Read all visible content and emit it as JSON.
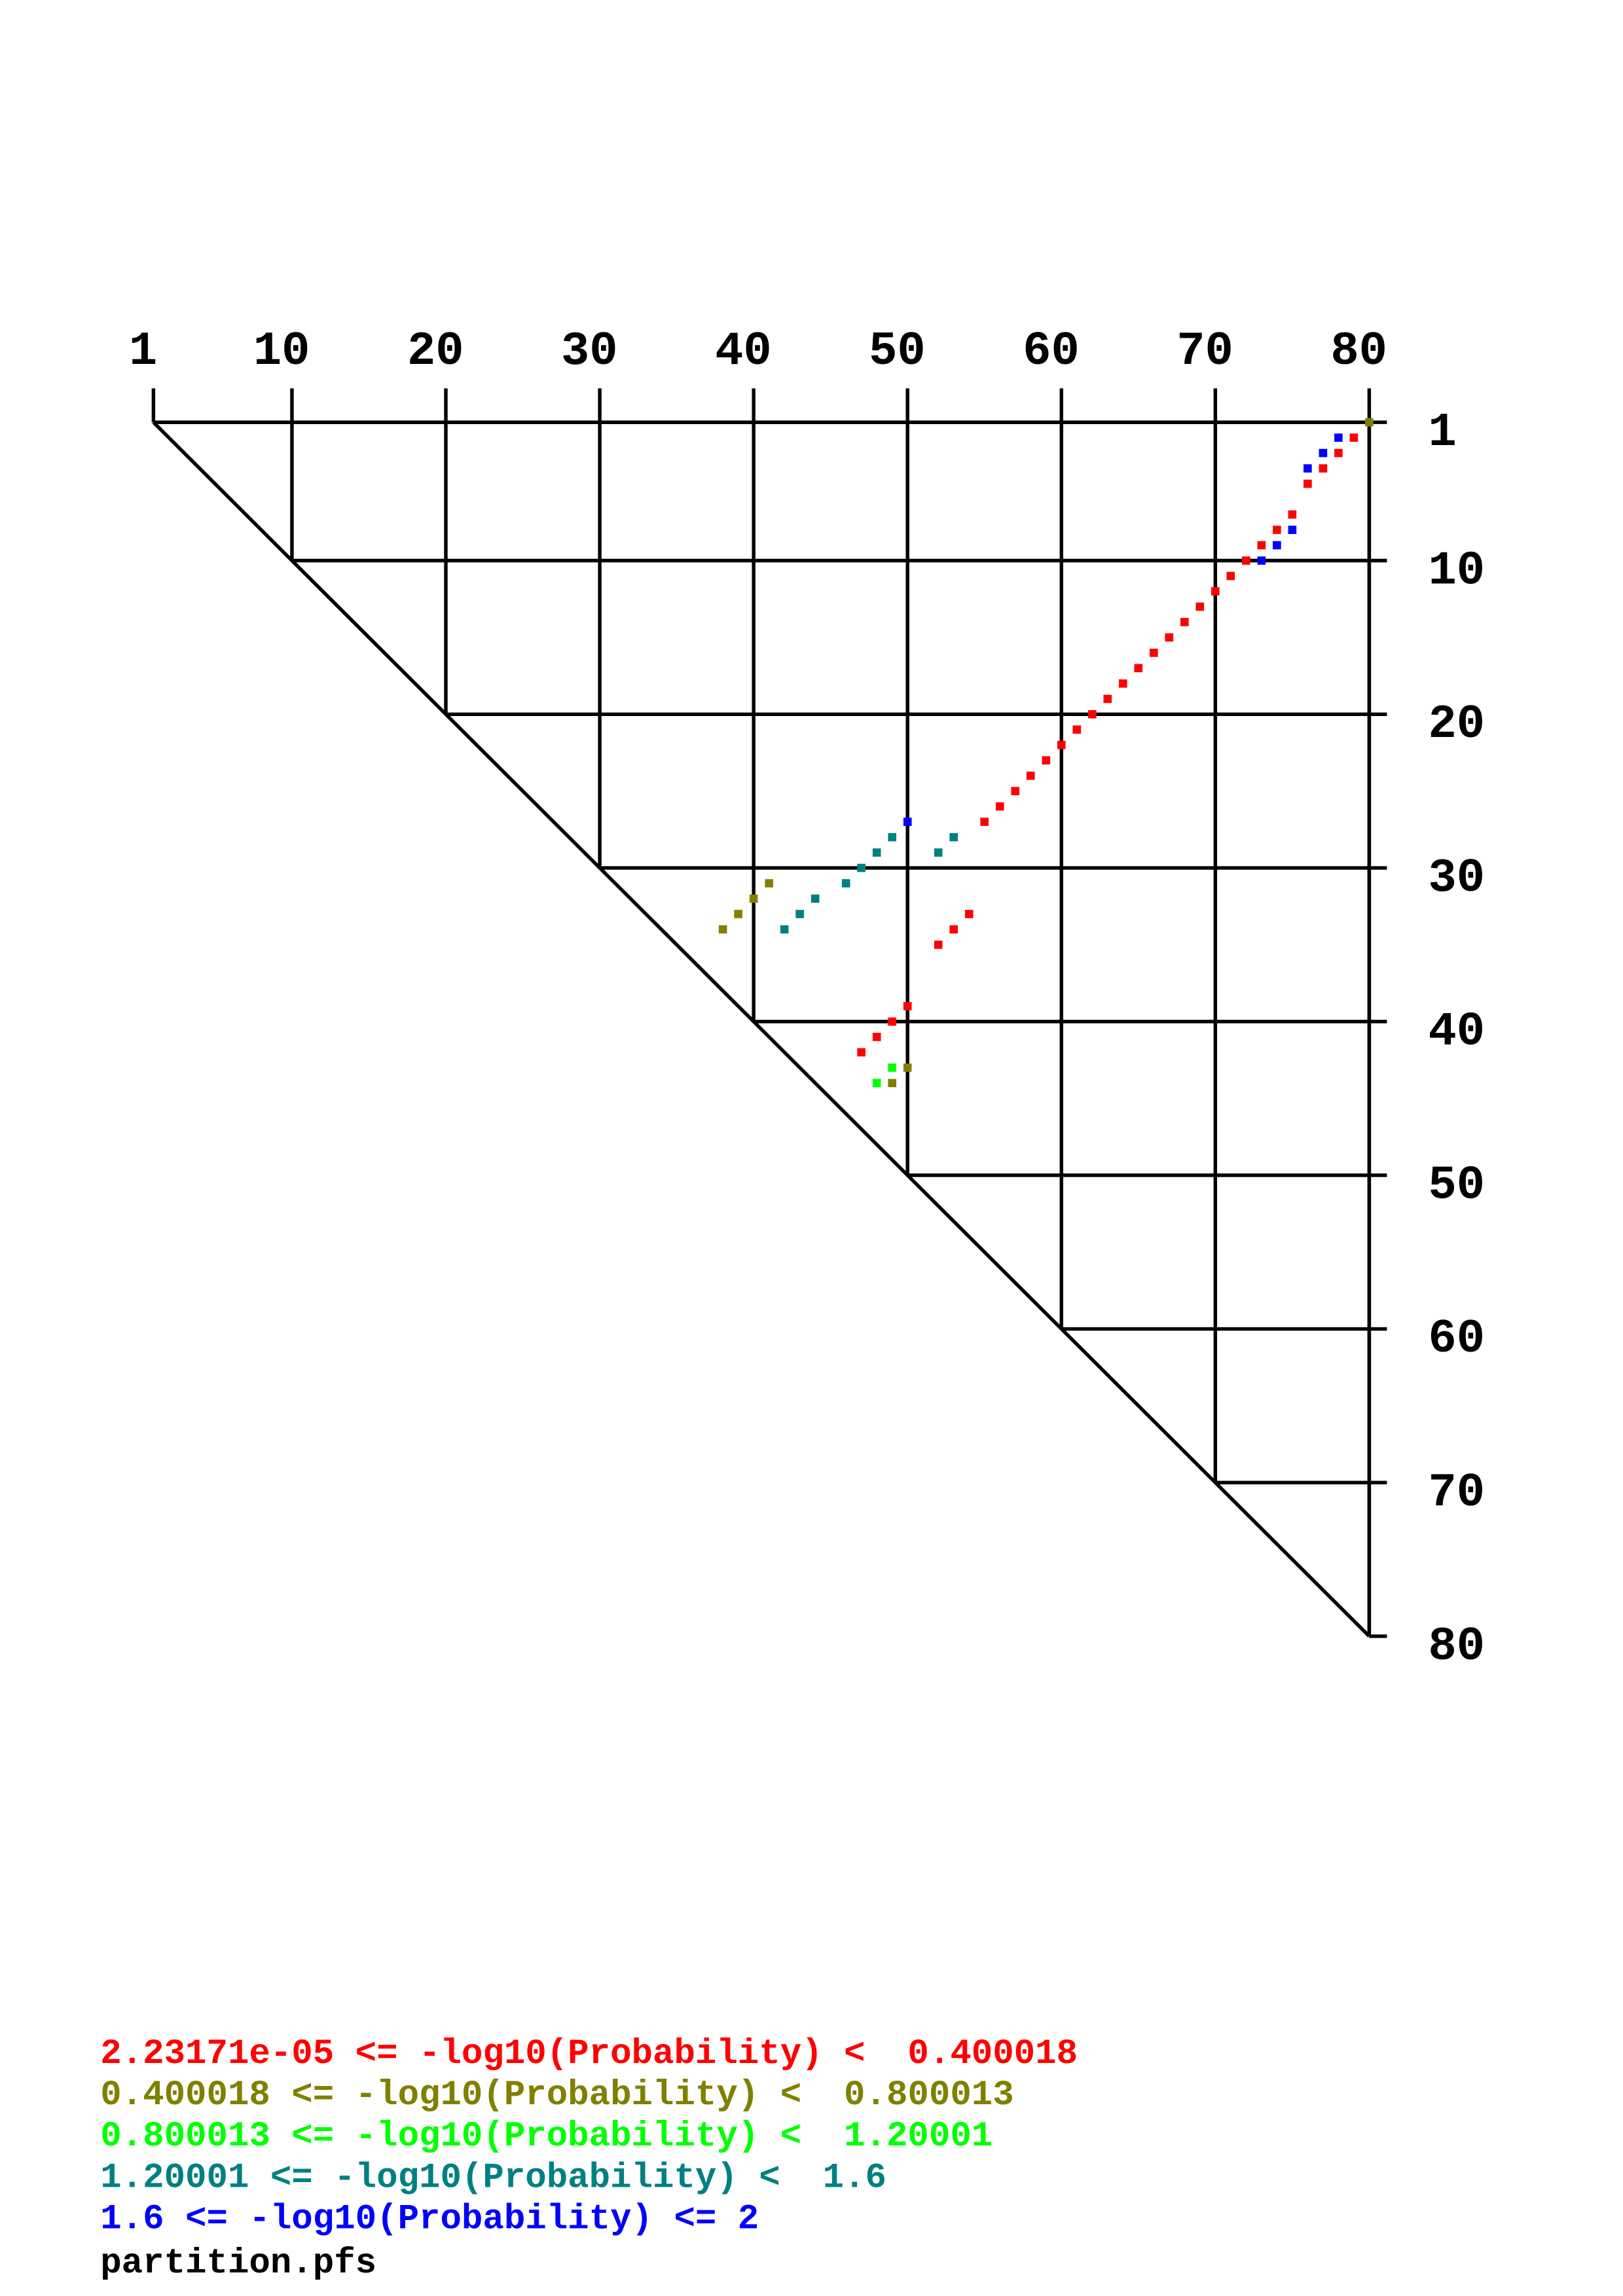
{
  "chart_data": {
    "type": "dotplot",
    "file": "partition.pfs",
    "xlim": [
      1,
      80
    ],
    "ylim": [
      1,
      80
    ],
    "xticks": [
      1,
      10,
      20,
      30,
      40,
      50,
      60,
      70,
      80
    ],
    "yticks": [
      1,
      10,
      20,
      30,
      40,
      50,
      60,
      70,
      80
    ],
    "series": [
      {
        "name": "2.23171e-05 <= -log10(Probability) <  0.400018",
        "color": "#ff0000",
        "x": [
          79,
          78,
          77,
          76,
          75,
          74,
          73,
          72,
          71,
          70,
          69,
          68,
          67,
          66,
          65,
          64,
          63,
          62,
          61,
          60,
          59,
          58,
          57,
          56,
          55,
          54,
          53,
          52,
          50,
          49,
          48,
          47
        ],
        "y": [
          2,
          3,
          4,
          5,
          7,
          8,
          9,
          10,
          11,
          12,
          13,
          14,
          15,
          16,
          17,
          18,
          19,
          20,
          21,
          22,
          23,
          24,
          25,
          26,
          27,
          33,
          34,
          35,
          39,
          40,
          41,
          42
        ]
      },
      {
        "name": "0.400018 <= -log10(Probability) <  0.800013",
        "color": "#808000",
        "x": [
          80,
          41,
          40,
          39,
          38,
          50,
          49
        ],
        "y": [
          1,
          31,
          32,
          33,
          34,
          43,
          44
        ]
      },
      {
        "name": "0.800013 <= -log10(Probability) <  1.20001",
        "color": "#00ff00",
        "x": [
          49,
          48
        ],
        "y": [
          43,
          44
        ]
      },
      {
        "name": "1.20001 <= -log10(Probability) <  1.6",
        "color": "#008080",
        "x": [
          53,
          49,
          52,
          48,
          47,
          46,
          44,
          43,
          42
        ],
        "y": [
          28,
          28,
          29,
          29,
          30,
          31,
          32,
          33,
          34
        ]
      },
      {
        "name": "1.6 <= -log10(Probability) <= 2",
        "color": "#0000ff",
        "x": [
          78,
          77,
          76,
          75,
          74,
          73,
          50
        ],
        "y": [
          2,
          3,
          4,
          8,
          9,
          10,
          27
        ]
      }
    ]
  }
}
